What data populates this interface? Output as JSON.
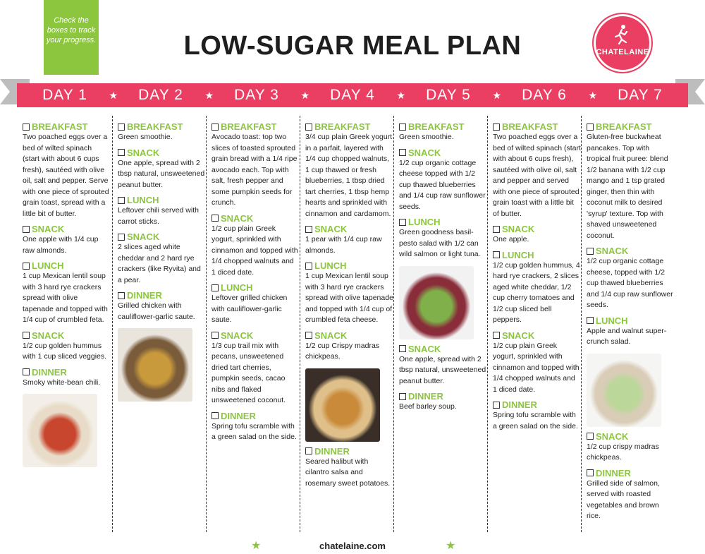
{
  "note": "Check the boxes to track your progress.",
  "title": "LOW-SUGAR MEAL PLAN",
  "logo": "CHATELAINE",
  "footer": "chatelaine.com",
  "days": [
    "DAY 1",
    "DAY 2",
    "DAY 3",
    "DAY 4",
    "DAY 5",
    "DAY 6",
    "DAY 7"
  ],
  "colors": {
    "pink": "#ea3f62",
    "green": "#8cc63f",
    "gray": "#bdbdbd"
  },
  "columns": [
    {
      "meals": [
        {
          "label": "BREAKFAST",
          "text": "Two poached eggs over a bed of wilted spinach (start with about 6 cups fresh), sautéed with olive oil, salt and pepper. Serve with one piece of sprouted grain toast, spread with a little bit of butter."
        },
        {
          "label": "SNACK",
          "text": "One apple with 1/4 cup raw almonds."
        },
        {
          "label": "LUNCH",
          "text": "1 cup Mexican lentil soup with 3 hard rye crackers spread with olive tapenade and topped with 1/4 cup of crumbled feta."
        },
        {
          "label": "SNACK",
          "text": "1/2 cup golden hummus with 1 cup sliced veggies."
        },
        {
          "label": "DINNER",
          "text": "Smoky white-bean chili."
        }
      ]
    },
    {
      "meals": [
        {
          "label": "BREAKFAST",
          "text": "Green smoothie."
        },
        {
          "label": "SNACK",
          "text": "One apple, spread with 2 tbsp natural, unsweetened peanut butter."
        },
        {
          "label": "LUNCH",
          "text": "Leftover chili served with carrot sticks."
        },
        {
          "label": "SNACK",
          "text": "2 slices aged white cheddar and 2 hard rye crackers (like Ryvita) and a pear."
        },
        {
          "label": "DINNER",
          "text": "Grilled chicken with cauliflower-garlic saute."
        }
      ]
    },
    {
      "meals": [
        {
          "label": "BREAKFAST",
          "text": "Avocado toast: top two slices of toasted sprouted grain bread with a 1/4 ripe avocado each. Top with salt, fresh pepper and some pumpkin seeds for crunch."
        },
        {
          "label": "SNACK",
          "text": "1/2 cup plain Greek yogurt, sprinkled with cinnamon and topped with 1/4 chopped walnuts and 1 diced date."
        },
        {
          "label": "LUNCH",
          "text": "Leftover grilled chicken with cauliflower-garlic saute."
        },
        {
          "label": "SNACK",
          "text": "1/3 cup trail mix with pecans, unsweetened dried tart cherries, pumpkin seeds, cacao nibs and flaked unsweetened coconut."
        },
        {
          "label": "DINNER",
          "text": "Spring tofu scramble with a green salad on the side."
        }
      ]
    },
    {
      "meals": [
        {
          "label": "BREAKFAST",
          "text": "3/4 cup plain Greek yogurt in a parfait, layered with 1/4 cup chopped walnuts, 1 cup thawed or fresh blueberries, 1 tbsp dried tart cherries, 1 tbsp hemp hearts and sprinkled with cinnamon and cardamom."
        },
        {
          "label": "SNACK",
          "text": "1 pear with 1/4 cup raw almonds."
        },
        {
          "label": "LUNCH",
          "text": "1 cup Mexican lentil soup with 3 hard rye crackers spread with olive tapenade and topped with 1/4 cup of crumbled feta cheese."
        },
        {
          "label": "SNACK",
          "text": "1/2 cup Crispy madras chickpeas."
        },
        {
          "label": "DINNER",
          "text": "Seared halibut with cilantro salsa and rosemary sweet potatoes."
        }
      ]
    },
    {
      "meals": [
        {
          "label": "BREAKFAST",
          "text": "Green smoothie."
        },
        {
          "label": "SNACK",
          "text": "1/2 cup organic cottage cheese topped with 1/2 cup thawed blueberries and 1/4 cup raw sunflower seeds."
        },
        {
          "label": "LUNCH",
          "text": "Green goodness basil-pesto salad with 1/2 can wild salmon or light tuna."
        },
        {
          "label": "SNACK",
          "text": "One apple, spread with 2 tbsp natural, unsweetened peanut butter."
        },
        {
          "label": "DINNER",
          "text": "Beef barley soup."
        }
      ]
    },
    {
      "meals": [
        {
          "label": "BREAKFAST",
          "text": "Two poached eggs over a bed of wilted spinach (start with about 6 cups fresh), sautéed with olive oil, salt and pepper and served with one piece of sprouted grain toast with a little bit of butter."
        },
        {
          "label": "SNACK",
          "text": "One apple."
        },
        {
          "label": "LUNCH",
          "text": "1/2 cup golden hummus, 4 hard rye crackers, 2 slices aged white cheddar, 1/2 cup cherry tomatoes and 1/2 cup sliced bell peppers."
        },
        {
          "label": "SNACK",
          "text": "1/2 cup plain Greek yogurt, sprinkled with cinnamon and topped with 1/4 chopped walnuts and 1 diced date."
        },
        {
          "label": "DINNER",
          "text": "Spring tofu scramble with a green salad on the side."
        }
      ]
    },
    {
      "meals": [
        {
          "label": "BREAKFAST",
          "text": "Gluten-free buckwheat pancakes. Top with tropical fruit puree: blend 1/2 banana with 1/2 cup mango and 1 tsp grated ginger, then thin with coconut milk to desired 'syrup' texture. Top with shaved unsweetened coconut."
        },
        {
          "label": "SNACK",
          "text": "1/2 cup organic cottage cheese, topped with 1/2 cup thawed blueberries and 1/4 cup raw sunflower seeds."
        },
        {
          "label": "LUNCH",
          "text": "Apple and walnut super-crunch salad."
        },
        {
          "label": "SNACK",
          "text": "1/2 cup crispy madras chickpeas."
        },
        {
          "label": "DINNER",
          "text": "Grilled side of salmon, served with roasted vegetables and brown rice."
        }
      ]
    }
  ]
}
